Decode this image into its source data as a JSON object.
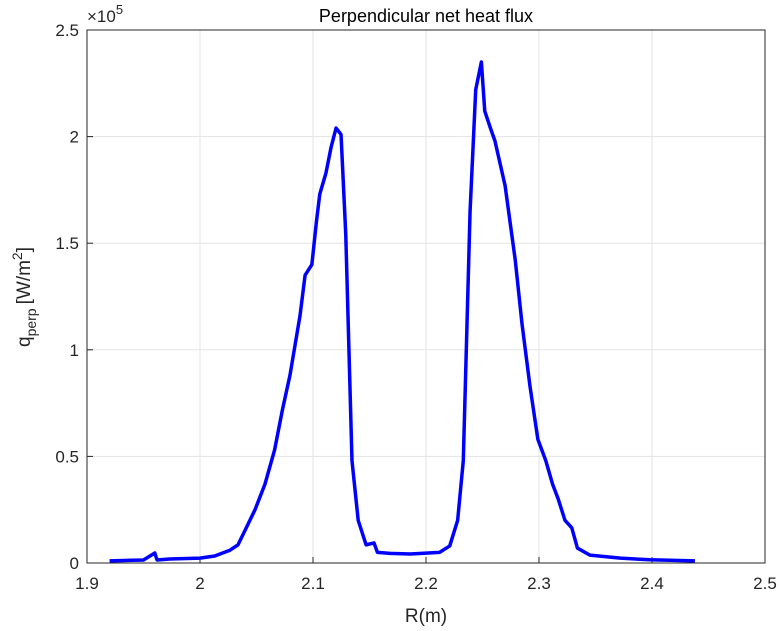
{
  "chart_data": {
    "type": "line",
    "title": "Perpendicular net heat flux",
    "xlabel": "R(m)",
    "ylabel": {
      "base": "q",
      "sub": "perp",
      "unit": "[W/m",
      "sup": "2",
      "close": "]"
    },
    "yscale_label": {
      "base": "×10",
      "exp": "5"
    },
    "xlim": [
      1.9,
      2.5
    ],
    "xticks": [
      1.9,
      2,
      2.1,
      2.2,
      2.3,
      2.4,
      2.5
    ],
    "ylim": [
      0,
      2.5
    ],
    "yticks": [
      0,
      0.5,
      1,
      1.5,
      2,
      2.5
    ],
    "grid": true,
    "series": [
      {
        "color": "#0000ff",
        "x": [
          1.92,
          1.95,
          1.96,
          1.962,
          1.973,
          2.0,
          2.013,
          2.0265,
          2.0336,
          2.04,
          2.0487,
          2.0575,
          2.066,
          2.073,
          2.0796,
          2.0885,
          2.093,
          2.099,
          2.103,
          2.106,
          2.1115,
          2.116,
          2.1204,
          2.1248,
          2.129,
          2.1345,
          2.14,
          2.147,
          2.154,
          2.157,
          2.168,
          2.186,
          2.212,
          2.221,
          2.228,
          2.233,
          2.239,
          2.244,
          2.249,
          2.252,
          2.257,
          2.261,
          2.27,
          2.279,
          2.285,
          2.292,
          2.299,
          2.306,
          2.312,
          2.317,
          2.323,
          2.329,
          2.334,
          2.345,
          2.372,
          2.398,
          2.438
        ],
        "values": [
          0.01,
          0.014,
          0.047,
          0.014,
          0.019,
          0.023,
          0.033,
          0.06,
          0.085,
          0.155,
          0.25,
          0.37,
          0.53,
          0.72,
          0.88,
          1.16,
          1.35,
          1.4,
          1.6,
          1.73,
          1.83,
          1.95,
          2.04,
          2.01,
          1.54,
          0.48,
          0.2,
          0.085,
          0.094,
          0.05,
          0.045,
          0.042,
          0.05,
          0.08,
          0.2,
          0.48,
          1.65,
          2.22,
          2.35,
          2.12,
          2.04,
          1.98,
          1.77,
          1.42,
          1.12,
          0.83,
          0.58,
          0.48,
          0.37,
          0.3,
          0.2,
          0.165,
          0.07,
          0.037,
          0.023,
          0.015,
          0.01
        ]
      }
    ]
  }
}
